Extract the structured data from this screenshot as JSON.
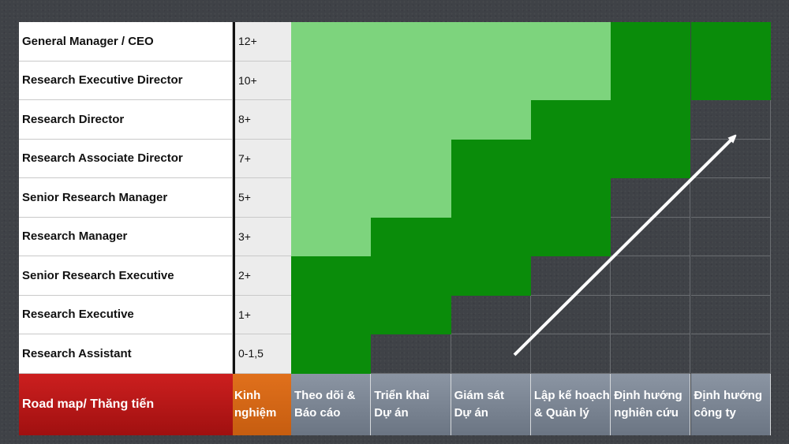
{
  "roles": [
    {
      "title": "General Manager / CEO",
      "experience": "12+",
      "cells": [
        "light",
        "light",
        "light",
        "light",
        "dark",
        "dark"
      ]
    },
    {
      "title": "Research Executive Director",
      "experience": "10+",
      "cells": [
        "light",
        "light",
        "light",
        "light",
        "dark",
        "dark"
      ]
    },
    {
      "title": "Research Director",
      "experience": "8+",
      "cells": [
        "light",
        "light",
        "light",
        "dark",
        "dark",
        "empty"
      ]
    },
    {
      "title": "Research Associate Director",
      "experience": "7+",
      "cells": [
        "light",
        "light",
        "dark",
        "dark",
        "dark",
        "empty"
      ]
    },
    {
      "title": "Senior Research Manager",
      "experience": "5+",
      "cells": [
        "light",
        "light",
        "dark",
        "dark",
        "empty",
        "empty"
      ]
    },
    {
      "title": "Research Manager",
      "experience": "3+",
      "cells": [
        "light",
        "dark",
        "dark",
        "dark",
        "empty",
        "empty"
      ]
    },
    {
      "title": "Senior Research Executive",
      "experience": "2+",
      "cells": [
        "dark",
        "dark",
        "dark",
        "empty",
        "empty",
        "empty"
      ]
    },
    {
      "title": "Research Executive",
      "experience": "1+",
      "cells": [
        "dark",
        "dark",
        "empty",
        "empty",
        "empty",
        "empty"
      ]
    },
    {
      "title": "Research Assistant",
      "experience": "0-1,5",
      "cells": [
        "dark",
        "empty",
        "empty",
        "empty",
        "empty",
        "empty"
      ]
    }
  ],
  "footer": {
    "roadmap_label": "Road map/ Thăng tiến",
    "experience_label": [
      "Kinh",
      "nghiệm"
    ],
    "phases": [
      [
        "Theo dõi &",
        "Báo cáo"
      ],
      [
        "Triển khai",
        "Dự án"
      ],
      [
        "Giám sát",
        "Dự án"
      ],
      [
        "Lập kế hoạch",
        "& Quản lý"
      ],
      [
        "Định hướng",
        "nghiên cứu"
      ],
      [
        "Định hướng",
        "công ty"
      ]
    ]
  },
  "colors": {
    "light": "#7dd47d",
    "dark": "#0a8c0a",
    "roadmap": "#b31818",
    "experience": "#d6661a",
    "phase": "#7b8593"
  },
  "icons": {
    "progress_arrow": "arrow-up-right-icon"
  }
}
